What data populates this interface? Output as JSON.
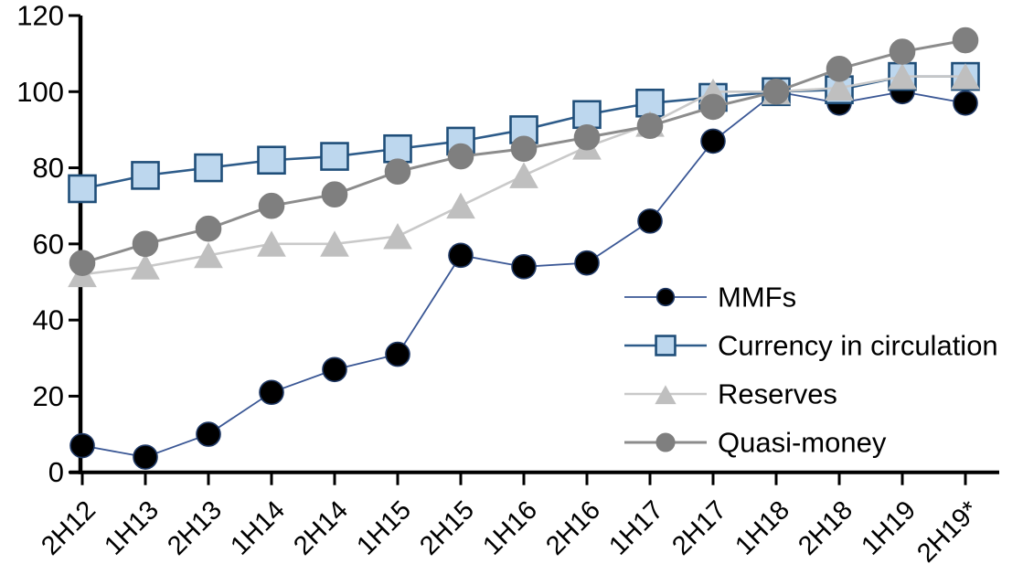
{
  "background": "#FFFFFF",
  "axis_color": "#000000",
  "text_color": "#000000",
  "chart_data": {
    "type": "line",
    "title": "",
    "xlabel": "",
    "ylabel": "",
    "grid": false,
    "legend_position": "inside-right",
    "ylim": [
      0,
      120
    ],
    "ytick_step": 20,
    "ytick_labels": [
      "0",
      "20",
      "40",
      "60",
      "80",
      "100",
      "120"
    ],
    "categories": [
      "2H12",
      "1H13",
      "2H13",
      "1H14",
      "2H14",
      "1H15",
      "2H15",
      "1H16",
      "2H16",
      "1H17",
      "2H17",
      "1H18",
      "2H18",
      "1H19",
      "2H19*"
    ],
    "series": [
      {
        "name": "MMFs",
        "marker": "circle",
        "marker_size": 13,
        "marker_fill": "#000000",
        "marker_stroke": "#1F3864",
        "line_color": "#3A5795",
        "line_width": 1.8,
        "values": [
          7,
          4,
          10,
          21,
          27,
          31,
          57,
          54,
          55,
          66,
          87,
          100,
          97,
          100,
          97
        ]
      },
      {
        "name": "Currency in circulation",
        "marker": "square",
        "marker_size": 14.5,
        "marker_fill": "#BDD7EE",
        "marker_stroke": "#1F4E79",
        "line_color": "#2E5C8A",
        "line_width": 2.6,
        "values": [
          74.5,
          78,
          80,
          82,
          83,
          85,
          87,
          90,
          94,
          97,
          98.5,
          100,
          100.5,
          104,
          104
        ]
      },
      {
        "name": "Reserves",
        "marker": "triangle",
        "marker_size": 14,
        "marker_fill": "#BFBFBF",
        "marker_stroke": "#BFBFBF",
        "line_color": "#C9C9C9",
        "line_width": 2.6,
        "values": [
          52,
          54,
          57,
          60,
          60,
          62,
          70,
          78,
          85.5,
          91.5,
          100,
          100,
          101,
          104,
          104
        ]
      },
      {
        "name": "Quasi-money",
        "marker": "circle",
        "marker_size": 13.5,
        "marker_fill": "#7F7F7F",
        "marker_stroke": "#7F7F7F",
        "line_color": "#8C8C8C",
        "line_width": 3,
        "values": [
          55,
          60,
          64,
          70,
          73,
          79,
          83,
          85,
          88,
          91,
          96,
          100,
          106,
          110.5,
          113.5
        ]
      }
    ]
  }
}
